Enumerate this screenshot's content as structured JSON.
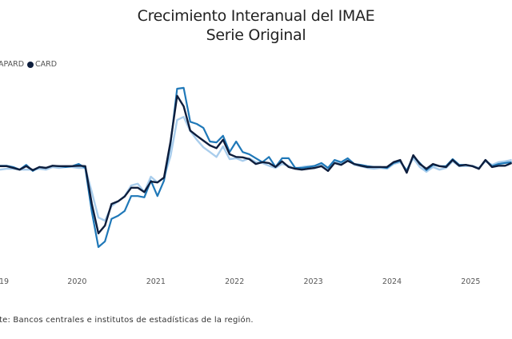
{
  "chart_data": {
    "type": "line",
    "title": "Crecimiento Interanual del IMAE",
    "subtitle": "Serie Original",
    "xlabel": "",
    "ylabel": "",
    "x_start": "2019-01",
    "x_frequency": "monthly",
    "x_ticks": [
      {
        "label": "19",
        "index": 0
      },
      {
        "label": "2020",
        "index": 12
      },
      {
        "label": "2021",
        "index": 24
      },
      {
        "label": "2022",
        "index": 36
      },
      {
        "label": "2023",
        "index": 48
      },
      {
        "label": "2024",
        "index": 60
      },
      {
        "label": "2025",
        "index": 72
      }
    ],
    "ylim": [
      -24,
      40
    ],
    "grid": false,
    "legend": {
      "placement": "top-left",
      "entries": [
        {
          "label": "APARD",
          "color": "#1f78b8"
        },
        {
          "label": "CARD",
          "color": "#0e1e3d"
        }
      ]
    },
    "series": [
      {
        "name": "",
        "color": "#a9cdec",
        "values": [
          3.6,
          3.8,
          3.8,
          3.6,
          3.6,
          3.6,
          3.8,
          3.6,
          4.2,
          4.0,
          4.2,
          4.2,
          4.0,
          4.0,
          -1.5,
          -7.3,
          -8.0,
          -4.7,
          -3.6,
          -2.4,
          0.0,
          0.4,
          -1.5,
          2.0,
          0.7,
          1.8,
          6.7,
          14.9,
          15.6,
          12.4,
          10.4,
          8.7,
          7.6,
          6.5,
          8.9,
          6.0,
          6.2,
          5.6,
          6.2,
          5.3,
          5.1,
          4.5,
          4.0,
          4.9,
          4.5,
          3.8,
          4.2,
          4.4,
          4.4,
          4.7,
          3.8,
          5.3,
          5.1,
          5.8,
          4.7,
          4.4,
          4.0,
          3.8,
          4.0,
          3.8,
          4.9,
          5.3,
          3.5,
          6.2,
          4.2,
          3.1,
          4.2,
          3.6,
          4.0,
          5.5,
          4.4,
          4.4,
          4.5,
          4.0,
          5.5,
          4.7,
          5.3,
          5.5,
          5.8
        ]
      },
      {
        "name": "APARD",
        "color": "#1f78b8",
        "values": [
          4.5,
          4.5,
          4.2,
          3.6,
          4.7,
          3.3,
          4.2,
          4.0,
          4.5,
          4.4,
          4.2,
          4.4,
          4.9,
          4.0,
          -6.0,
          -14.0,
          -12.7,
          -7.6,
          -6.9,
          -5.8,
          -2.4,
          -2.4,
          -2.7,
          1.1,
          -2.4,
          1.1,
          9.5,
          22.0,
          22.2,
          14.5,
          14.0,
          13.1,
          10.0,
          9.8,
          11.3,
          7.6,
          10.0,
          7.6,
          7.1,
          6.2,
          5.3,
          6.5,
          4.2,
          6.2,
          6.2,
          4.0,
          4.0,
          4.2,
          4.5,
          5.1,
          4.0,
          5.8,
          5.3,
          6.2,
          4.9,
          4.7,
          4.4,
          4.2,
          4.2,
          4.0,
          5.1,
          5.6,
          3.3,
          6.7,
          5.1,
          3.5,
          4.7,
          4.4,
          4.4,
          6.0,
          4.7,
          4.7,
          4.4,
          3.8,
          5.8,
          4.4,
          4.9,
          5.1,
          5.3
        ]
      },
      {
        "name": "CARD",
        "color": "#0e1e3d",
        "values": [
          4.4,
          4.4,
          4.0,
          3.6,
          4.4,
          3.5,
          4.2,
          4.0,
          4.5,
          4.4,
          4.4,
          4.4,
          4.5,
          4.4,
          -4.2,
          -10.9,
          -9.1,
          -4.2,
          -3.6,
          -2.5,
          -0.5,
          -0.5,
          -1.5,
          0.9,
          0.7,
          1.8,
          10.0,
          20.4,
          18.0,
          12.5,
          11.3,
          10.2,
          9.1,
          8.5,
          10.4,
          7.1,
          6.5,
          6.4,
          6.0,
          4.9,
          5.3,
          5.1,
          4.2,
          5.5,
          4.2,
          3.8,
          3.6,
          3.8,
          4.0,
          4.4,
          3.3,
          5.1,
          4.7,
          5.6,
          4.9,
          4.5,
          4.2,
          4.2,
          4.2,
          4.2,
          5.3,
          5.8,
          2.9,
          6.9,
          4.9,
          3.8,
          4.9,
          4.4,
          4.2,
          5.8,
          4.5,
          4.7,
          4.4,
          3.8,
          5.8,
          4.2,
          4.5,
          4.5,
          5.1
        ]
      }
    ]
  },
  "source_note": "te: Bancos centrales e institutos de estadísticas de la región."
}
